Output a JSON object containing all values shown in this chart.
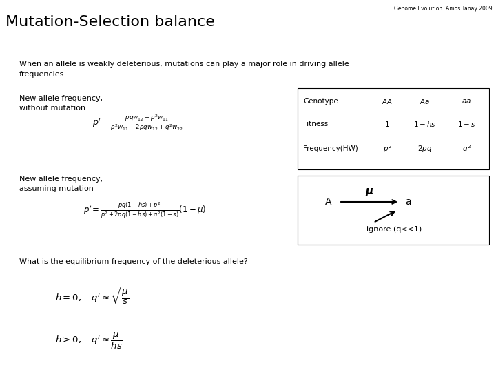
{
  "title": "Mutation-Selection balance",
  "subtitle": "Genome Evolution. Amos Tanay 2009",
  "bg_color": "#ffffff",
  "text_color": "#000000",
  "intro_text": "When an allele is weakly deleterious, mutations can play a major role in driving allele\nfrequencies",
  "label1": "New allele frequency,\nwithout mutation",
  "label2": "New allele frequency,\nassuming mutation",
  "question": "What is the equilibrium frequency of the deleterious allele?",
  "table_genotype": "Genotype",
  "table_fitness": "Fitness",
  "table_freq": "Frequency(HW)",
  "ignore_text": "ignore (q<<1)"
}
